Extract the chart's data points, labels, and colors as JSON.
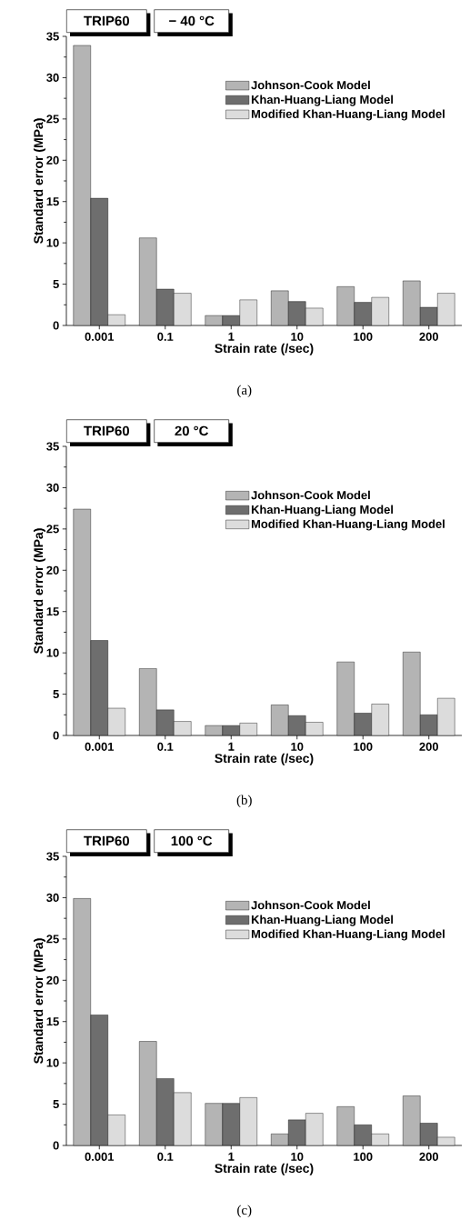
{
  "chart_data": [
    {
      "type": "bar",
      "categories": [
        "0.001",
        "0.1",
        "1",
        "10",
        "100",
        "200"
      ],
      "xlabel": "Strain rate (/sec)",
      "ylabel": "Standard error (MPa)",
      "ylim": [
        0,
        35
      ],
      "yticks": [
        0,
        5,
        10,
        15,
        20,
        25,
        30,
        35
      ],
      "legend": "top right",
      "annotations": [
        "TRIP60",
        "− 40 °C",
        "(a)"
      ],
      "series": [
        {
          "name": "Johnson-Cook Model",
          "color": "#b4b4b4",
          "values": [
            33.9,
            10.6,
            1.2,
            4.2,
            4.7,
            5.4
          ]
        },
        {
          "name": "Khan-Huang-Liang Model",
          "color": "#6e6e6e",
          "values": [
            15.4,
            4.4,
            1.2,
            2.9,
            2.8,
            2.2
          ]
        },
        {
          "name": "Modified Khan-Huang-Liang Model",
          "color": "#dcdcdc",
          "values": [
            1.3,
            3.9,
            3.1,
            2.1,
            3.4,
            3.9
          ]
        }
      ]
    },
    {
      "type": "bar",
      "categories": [
        "0.001",
        "0.1",
        "1",
        "10",
        "100",
        "200"
      ],
      "xlabel": "Strain rate (/sec)",
      "ylabel": "Standard error (MPa)",
      "ylim": [
        0,
        35
      ],
      "yticks": [
        0,
        5,
        10,
        15,
        20,
        25,
        30,
        35
      ],
      "legend": "top right",
      "annotations": [
        "TRIP60",
        "20 °C",
        "(b)"
      ],
      "series": [
        {
          "name": "Johnson-Cook Model",
          "color": "#b4b4b4",
          "values": [
            27.4,
            8.1,
            1.2,
            3.7,
            8.9,
            10.1
          ]
        },
        {
          "name": "Khan-Huang-Liang Model",
          "color": "#6e6e6e",
          "values": [
            11.5,
            3.1,
            1.2,
            2.4,
            2.7,
            2.5
          ]
        },
        {
          "name": "Modified Khan-Huang-Liang Model",
          "color": "#dcdcdc",
          "values": [
            3.3,
            1.7,
            1.5,
            1.6,
            3.8,
            4.5
          ]
        }
      ]
    },
    {
      "type": "bar",
      "categories": [
        "0.001",
        "0.1",
        "1",
        "10",
        "100",
        "200"
      ],
      "xlabel": "Strain rate (/sec)",
      "ylabel": "Standard error (MPa)",
      "ylim": [
        0,
        35
      ],
      "yticks": [
        0,
        5,
        10,
        15,
        20,
        25,
        30,
        35
      ],
      "legend": "top right",
      "annotations": [
        "TRIP60",
        "100 °C",
        "(c)"
      ],
      "series": [
        {
          "name": "Johnson-Cook Model",
          "color": "#b4b4b4",
          "values": [
            29.9,
            12.6,
            5.1,
            1.4,
            4.7,
            6.0
          ]
        },
        {
          "name": "Khan-Huang-Liang Model",
          "color": "#6e6e6e",
          "values": [
            15.8,
            8.1,
            5.1,
            3.1,
            2.5,
            2.7
          ]
        },
        {
          "name": "Modified Khan-Huang-Liang Model",
          "color": "#dcdcdc",
          "values": [
            3.7,
            6.4,
            5.8,
            3.9,
            1.4,
            1.0
          ]
        }
      ]
    }
  ]
}
